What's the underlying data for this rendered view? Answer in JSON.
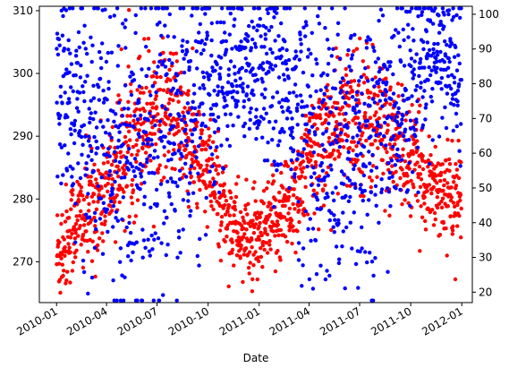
{
  "chart_data": {
    "type": "scatter",
    "title": "",
    "xlabel": "Date",
    "ylabel_left": "",
    "ylabel_right": "",
    "x_range": [
      "2009-12-01",
      "2012-01-20"
    ],
    "x_ticks": [
      {
        "date": "2010-01-01",
        "label": "2010-01"
      },
      {
        "date": "2010-04-01",
        "label": "2010-04"
      },
      {
        "date": "2010-07-01",
        "label": "2010-07"
      },
      {
        "date": "2010-10-01",
        "label": "2010-10"
      },
      {
        "date": "2011-01-01",
        "label": "2011-01"
      },
      {
        "date": "2011-04-01",
        "label": "2011-04"
      },
      {
        "date": "2011-07-01",
        "label": "2011-07"
      },
      {
        "date": "2011-10-01",
        "label": "2011-10"
      },
      {
        "date": "2012-01-01",
        "label": "2012-01"
      }
    ],
    "y_left": {
      "range": [
        263.5,
        310.7
      ],
      "ticks": [
        270,
        280,
        290,
        300,
        310
      ],
      "color": "#ff0000"
    },
    "y_right": {
      "range": [
        17.0,
        102.3
      ],
      "ticks": [
        20,
        30,
        40,
        50,
        60,
        70,
        80,
        90,
        100
      ],
      "color": "#0000ff"
    },
    "grid": false,
    "legend": "none",
    "series": [
      {
        "axis": "left",
        "color": "#ff0000",
        "marker": "o",
        "profile": [
          [
            "2010-01-01",
            271,
            4.5
          ],
          [
            "2010-02-01",
            276,
            4.0
          ],
          [
            "2010-03-01",
            278,
            5.0
          ],
          [
            "2010-04-01",
            282,
            4.5
          ],
          [
            "2010-05-01",
            287,
            6.0
          ],
          [
            "2010-06-01",
            293,
            6.0
          ],
          [
            "2010-07-01",
            295,
            5.5
          ],
          [
            "2010-08-01",
            294,
            5.0
          ],
          [
            "2010-09-01",
            288,
            5.0
          ],
          [
            "2010-10-01",
            284,
            4.5
          ],
          [
            "2010-11-01",
            278,
            4.0
          ],
          [
            "2010-12-01",
            274,
            3.5
          ],
          [
            "2011-01-01",
            273,
            3.5
          ],
          [
            "2011-02-01",
            277,
            4.0
          ],
          [
            "2011-03-01",
            280,
            4.5
          ],
          [
            "2011-04-01",
            286,
            5.0
          ],
          [
            "2011-05-01",
            290,
            5.5
          ],
          [
            "2011-06-01",
            292,
            5.5
          ],
          [
            "2011-07-01",
            294,
            6.0
          ],
          [
            "2011-08-01",
            292,
            5.5
          ],
          [
            "2011-09-01",
            289,
            5.0
          ],
          [
            "2011-10-01",
            286,
            4.5
          ],
          [
            "2011-11-01",
            283,
            4.0
          ],
          [
            "2011-12-01",
            281,
            3.5
          ],
          [
            "2011-12-31",
            280,
            3.5
          ]
        ]
      },
      {
        "axis": "right",
        "color": "#0000ff",
        "marker": "o",
        "profile": [
          [
            "2010-01-01",
            78,
            14
          ],
          [
            "2010-02-01",
            72,
            17
          ],
          [
            "2010-03-01",
            68,
            19
          ],
          [
            "2010-04-01",
            66,
            20
          ],
          [
            "2010-05-01",
            64,
            21
          ],
          [
            "2010-06-01",
            63,
            22
          ],
          [
            "2010-07-01",
            65,
            21
          ],
          [
            "2010-08-01",
            66,
            20
          ],
          [
            "2010-09-01",
            70,
            19
          ],
          [
            "2010-10-01",
            76,
            16
          ],
          [
            "2010-11-01",
            82,
            13
          ],
          [
            "2010-12-01",
            86,
            11
          ],
          [
            "2011-01-01",
            85,
            12
          ],
          [
            "2011-02-01",
            80,
            14
          ],
          [
            "2011-03-01",
            74,
            17
          ],
          [
            "2011-04-01",
            66,
            20
          ],
          [
            "2011-05-01",
            60,
            21
          ],
          [
            "2011-06-01",
            58,
            22
          ],
          [
            "2011-07-01",
            62,
            21
          ],
          [
            "2011-08-01",
            66,
            20
          ],
          [
            "2011-09-01",
            72,
            17
          ],
          [
            "2011-10-01",
            80,
            14
          ],
          [
            "2011-11-01",
            86,
            11
          ],
          [
            "2011-12-01",
            87,
            10
          ],
          [
            "2011-12-31",
            86,
            10
          ]
        ]
      }
    ],
    "points_per_day": 2
  }
}
